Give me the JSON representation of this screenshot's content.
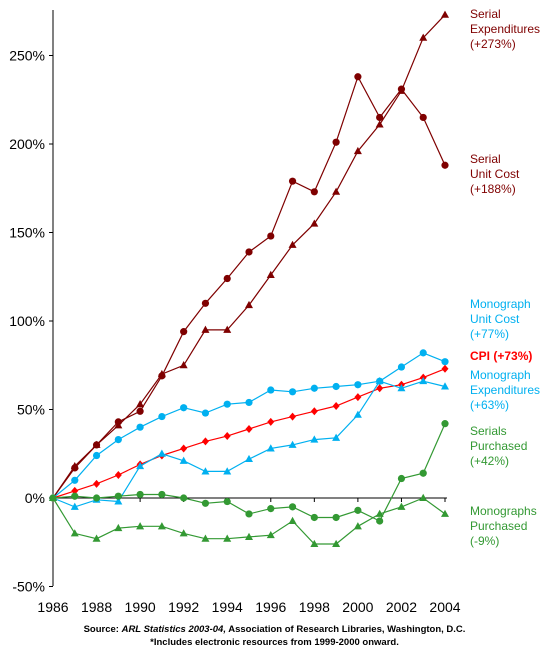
{
  "chart_data": {
    "type": "line",
    "title": "",
    "xlabel": "",
    "ylabel": "",
    "ylim": [
      -50,
      275
    ],
    "xlim": [
      1986,
      2004
    ],
    "y_ticks": [
      "-50%",
      "0%",
      "50%",
      "100%",
      "150%",
      "200%",
      "250%"
    ],
    "x_ticks": [
      "1986",
      "1988",
      "1990",
      "1992",
      "1994",
      "1996",
      "1998",
      "2000",
      "2002",
      "2004"
    ],
    "grid": false,
    "x": [
      1986,
      1987,
      1988,
      1989,
      1990,
      1991,
      1992,
      1993,
      1994,
      1995,
      1996,
      1997,
      1998,
      1999,
      2000,
      2001,
      2002,
      2003,
      2004
    ],
    "series": [
      {
        "key": "serial_exp",
        "color": "#7f0000",
        "marker": "triangle",
        "label_lines": [
          "Serial",
          "Expenditures",
          "(+273%)"
        ],
        "values": [
          0,
          18,
          30,
          41,
          53,
          70,
          75,
          95,
          95,
          109,
          126,
          143,
          155,
          173,
          196,
          211,
          230,
          260,
          273
        ]
      },
      {
        "key": "serial_uc",
        "color": "#7f0000",
        "marker": "circle",
        "label_lines": [
          "Serial",
          "Unit Cost",
          "(+188%)"
        ],
        "values": [
          0,
          17,
          30,
          43,
          49,
          69,
          94,
          110,
          124,
          139,
          148,
          179,
          173,
          201,
          238,
          215,
          231,
          215,
          188
        ]
      },
      {
        "key": "mono_uc",
        "color": "#00b0f0",
        "marker": "circle",
        "label_lines": [
          "Monograph",
          "Unit Cost",
          "(+77%)"
        ],
        "values": [
          0,
          10,
          24,
          33,
          40,
          46,
          51,
          48,
          53,
          54,
          61,
          60,
          62,
          63,
          64,
          66,
          74,
          82,
          77
        ]
      },
      {
        "key": "cpi",
        "color": "#ff0000",
        "marker": "diamond",
        "label_lines": [
          "CPI (+73%)"
        ],
        "values": [
          0,
          4,
          8,
          13,
          19,
          24,
          28,
          32,
          35,
          39,
          43,
          46,
          49,
          52,
          57,
          62,
          64,
          68,
          73
        ]
      },
      {
        "key": "mono_exp",
        "color": "#00b0f0",
        "marker": "triangle",
        "label_lines": [
          "Monograph",
          "Expenditures",
          "(+63%)"
        ],
        "values": [
          0,
          -5,
          -1,
          -2,
          18,
          25,
          21,
          15,
          15,
          22,
          28,
          30,
          33,
          34,
          47,
          66,
          62,
          66,
          63
        ]
      },
      {
        "key": "serials_purch",
        "color": "#339933",
        "marker": "circle",
        "label_lines": [
          "Serials",
          "Purchased",
          "(+42%)"
        ],
        "values": [
          0,
          1,
          0,
          1,
          2,
          2,
          0,
          -3,
          -2,
          -9,
          -6,
          -5,
          -11,
          -11,
          -7,
          -13,
          11,
          14,
          42
        ]
      },
      {
        "key": "mono_purch",
        "color": "#339933",
        "marker": "triangle",
        "label_lines": [
          "Monographs",
          "Purchased",
          "(-9%)"
        ],
        "values": [
          0,
          -20,
          -23,
          -17,
          -16,
          -16,
          -20,
          -23,
          -23,
          -22,
          -21,
          -13,
          -26,
          -26,
          -16,
          -9,
          -5,
          0,
          -9
        ]
      }
    ]
  },
  "footer": {
    "source_prefix": "Source: ",
    "source_title": "ARL Statistics 2003-04,",
    "source_rest": " Association of Research Libraries, Washington, D.C.",
    "note": "*Includes electronic resources from 1999-2000 onward."
  }
}
